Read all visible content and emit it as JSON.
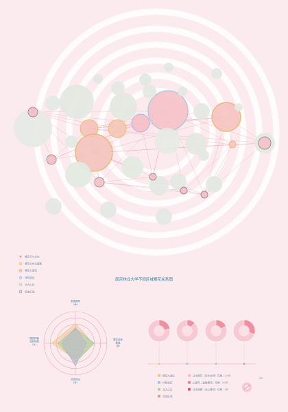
{
  "title": "南京林业大学不同区域樱花关系图",
  "network_legend": [
    {
      "label": "樱花点与分布",
      "color": "#e8a1ac",
      "stroke": "#ffffff"
    },
    {
      "label": "樱花分布位置集",
      "color": "#f5d9a0",
      "stroke": "#f0c070"
    },
    {
      "label": "樱花大面积",
      "color": "#f6c6b8",
      "stroke": "#e8a58a"
    },
    {
      "label": "林荫道区",
      "color": "#c9dfe8",
      "stroke": "#9cc0d3"
    },
    {
      "label": "北大山区",
      "color": "#d8e6cc",
      "stroke": "#b5cca3"
    },
    {
      "label": "其他区域",
      "color": "#f3d3d8",
      "stroke": "#888888"
    }
  ],
  "chart_data": [
    {
      "type": "network",
      "title": "南京林业大学不同区域樱花关系图"
    },
    {
      "type": "radar",
      "axes": [
        "参观频率\n（高）",
        "樱花品种\n数量\n（多）",
        "开花时间\n（早）",
        "樱花种植\n面积规模\n（大）"
      ],
      "series": [
        {
          "color": "#f2c58e",
          "values": [
            0.62,
            0.55,
            0.5,
            0.75
          ]
        },
        {
          "color": "#9ccfa0",
          "values": [
            0.45,
            0.6,
            0.6,
            0.55
          ]
        },
        {
          "color": "#b7b3d0",
          "values": [
            0.5,
            0.35,
            0.72,
            0.42
          ]
        }
      ]
    },
    {
      "type": "pie",
      "pies": [
        {
          "slices": [
            0.22,
            0.78
          ]
        },
        {
          "slices": [
            0.12,
            0.88
          ]
        },
        {
          "slices": [
            0.18,
            0.82
          ]
        },
        {
          "slices": [
            0.3,
            0.7
          ]
        }
      ]
    }
  ],
  "pie_legend": [
    {
      "label": "樱花大道区",
      "color": "#f1c36d"
    },
    {
      "label": "林荫道区",
      "color": "#8ec7e0"
    },
    {
      "label": "北大山区",
      "color": "#9fd0a0"
    },
    {
      "label": "其他区域",
      "color": "#c89aa0"
    },
    {
      "label": "日本樱花（染井吉野）花期：3-4月",
      "color": "#f7b8c3"
    },
    {
      "label": "山樱花（重瓣樱花）花期：4-5月",
      "color": "#ea7a8c"
    },
    {
      "label": "日本晚樱（关山樱花）花期：4月",
      "color": "#d94a61"
    }
  ],
  "corner_note": "2%"
}
